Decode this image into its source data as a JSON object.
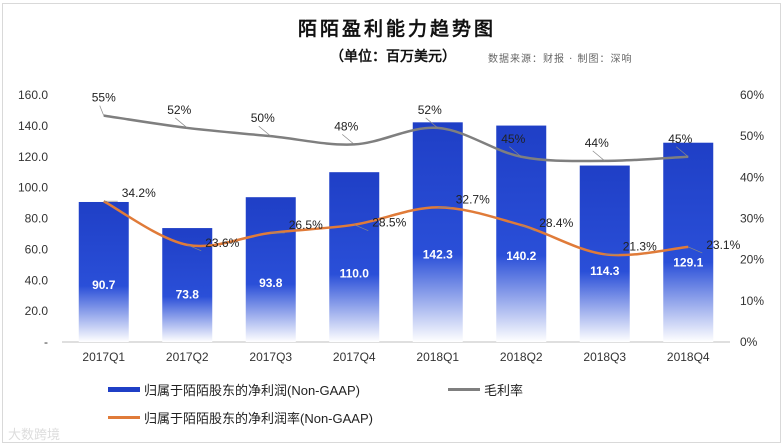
{
  "header": {
    "title": "陌陌盈利能力趋势图",
    "unit": "（单位：百万美元）",
    "source": "数据来源：财报 · 制图：深响"
  },
  "watermark": "大数跨境",
  "chart_data": {
    "type": "bar+line",
    "categories": [
      "2017Q1",
      "2017Q2",
      "2017Q3",
      "2017Q4",
      "2018Q1",
      "2018Q2",
      "2018Q3",
      "2018Q4"
    ],
    "series": [
      {
        "name": "归属于陌陌股东的净利润(Non-GAAP)",
        "type": "bar",
        "axis": "left",
        "color": "#1f3fc6",
        "values": [
          90.7,
          73.8,
          93.8,
          110.0,
          142.3,
          140.2,
          114.3,
          129.1
        ]
      },
      {
        "name": "毛利率",
        "type": "line",
        "axis": "right",
        "color": "#7f7f7f",
        "values": [
          55,
          52,
          50,
          48,
          52,
          45,
          44,
          45
        ]
      },
      {
        "name": "归属于陌陌股东的净利润率(Non-GAAP)",
        "type": "line",
        "axis": "right",
        "color": "#e07b39",
        "values": [
          34.2,
          23.6,
          26.5,
          28.5,
          32.7,
          28.4,
          21.3,
          23.1
        ]
      }
    ],
    "left_axis": {
      "ylim": [
        0,
        160
      ],
      "ticks": [
        "-",
        "20.0",
        "40.0",
        "60.0",
        "80.0",
        "100.0",
        "120.0",
        "140.0",
        "160.0"
      ]
    },
    "right_axis": {
      "ylim": [
        0,
        60
      ],
      "ticks": [
        "0%",
        "10%",
        "20%",
        "30%",
        "40%",
        "50%",
        "60%"
      ]
    },
    "legend": "bottom",
    "grid": false
  }
}
